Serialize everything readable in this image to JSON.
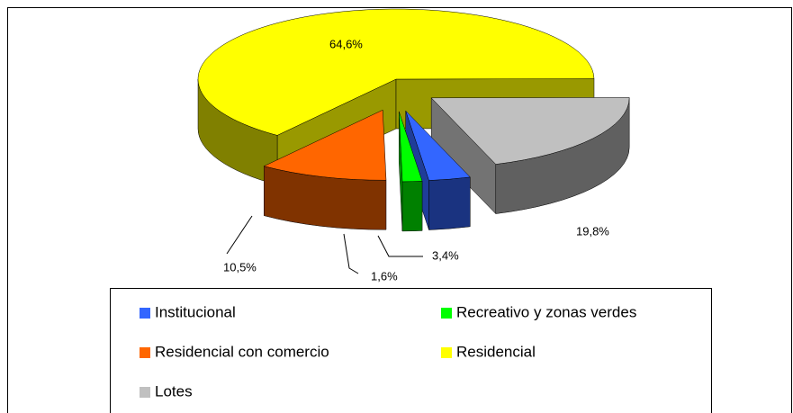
{
  "chart_data": {
    "type": "pie",
    "categories": [
      "Institucional",
      "Recreativo y zonas verdes",
      "Residencial con comercio",
      "Residencial",
      "Lotes"
    ],
    "values": [
      3.4,
      1.6,
      10.5,
      64.6,
      19.8
    ],
    "value_labels": [
      "3,4%",
      "1,6%",
      "10,5%",
      "64,6%",
      "19,8%"
    ],
    "colors": [
      "#3366ff",
      "#00ff00",
      "#ff6600",
      "#ffff00",
      "#c0c0c0"
    ]
  }
}
